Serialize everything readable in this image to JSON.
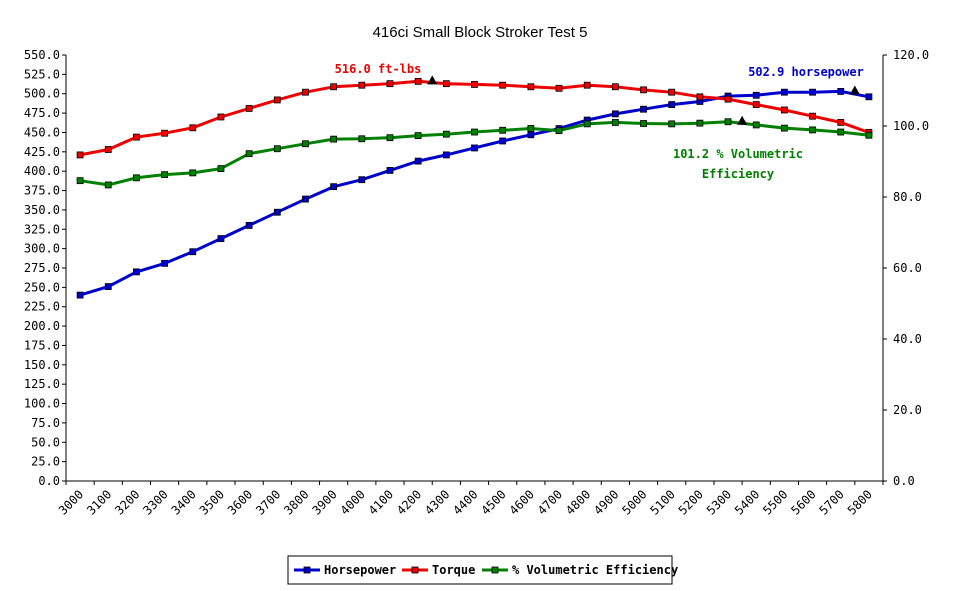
{
  "chart_data": {
    "type": "line",
    "title": "416ci Small Block Stroker Test 5",
    "categories": [
      "3000",
      "3100",
      "3200",
      "3300",
      "3400",
      "3500",
      "3600",
      "3700",
      "3800",
      "3900",
      "4000",
      "4100",
      "4200",
      "4300",
      "4400",
      "4500",
      "4600",
      "4700",
      "4800",
      "4900",
      "5000",
      "5100",
      "5200",
      "5300",
      "5400",
      "5500",
      "5600",
      "5700",
      "5800"
    ],
    "y_left": {
      "min": 0,
      "max": 550,
      "step": 25,
      "tick_labels": [
        "0.0",
        "25.0",
        "50.0",
        "75.0",
        "100.0",
        "125.0",
        "150.0",
        "175.0",
        "200.0",
        "225.0",
        "250.0",
        "275.0",
        "300.0",
        "325.0",
        "350.0",
        "375.0",
        "400.0",
        "425.0",
        "450.0",
        "475.0",
        "500.0",
        "525.0",
        "550.0"
      ]
    },
    "y_right": {
      "min": 0,
      "max": 120,
      "step": 20,
      "tick_labels": [
        "0.0",
        "20.0",
        "40.0",
        "60.0",
        "80.0",
        "100.0",
        "120.0"
      ]
    },
    "grid": false,
    "legend_position": "bottom",
    "series": [
      {
        "name": "Horsepower",
        "axis": "left",
        "color": "#0000cc",
        "values": [
          240,
          251,
          270,
          281,
          296,
          313,
          330,
          347,
          364,
          380,
          389,
          401,
          413,
          421,
          430,
          439,
          447,
          455,
          466,
          474,
          480,
          486,
          490,
          497,
          498,
          502,
          502,
          503,
          496
        ]
      },
      {
        "name": "Torque",
        "axis": "left",
        "color": "#ee0000",
        "values": [
          421,
          428,
          444,
          449,
          456,
          470,
          481,
          492,
          502,
          509,
          511,
          513,
          516,
          513,
          512,
          511,
          509,
          507,
          511,
          509,
          505,
          502,
          496,
          493,
          486,
          479,
          471,
          463,
          450
        ]
      },
      {
        "name": "% Volumetric Efficiency",
        "axis": "right",
        "color": "#008000",
        "values": [
          84.6,
          83.4,
          85.4,
          86.3,
          86.8,
          88.0,
          92.2,
          93.6,
          95.0,
          96.3,
          96.4,
          96.7,
          97.3,
          97.7,
          98.3,
          98.8,
          99.3,
          98.7,
          100.6,
          101.0,
          100.7,
          100.6,
          100.8,
          101.2,
          100.3,
          99.4,
          98.9,
          98.3,
          97.4
        ]
      }
    ],
    "annotations": [
      {
        "text": "516.0 ft-lbs",
        "color": "#ee0000",
        "marker_category": "4250",
        "marker_value": 516.0,
        "axis": "left"
      },
      {
        "text": "502.9 horsepower",
        "color": "#0000cc",
        "marker_category": "5750",
        "marker_value": 502.9,
        "axis": "left"
      },
      {
        "text": "101.2 % Volumetric",
        "text2": "Efficiency",
        "color": "#008000",
        "marker_category": "5350",
        "marker_value": 101.2,
        "axis": "right"
      }
    ]
  }
}
